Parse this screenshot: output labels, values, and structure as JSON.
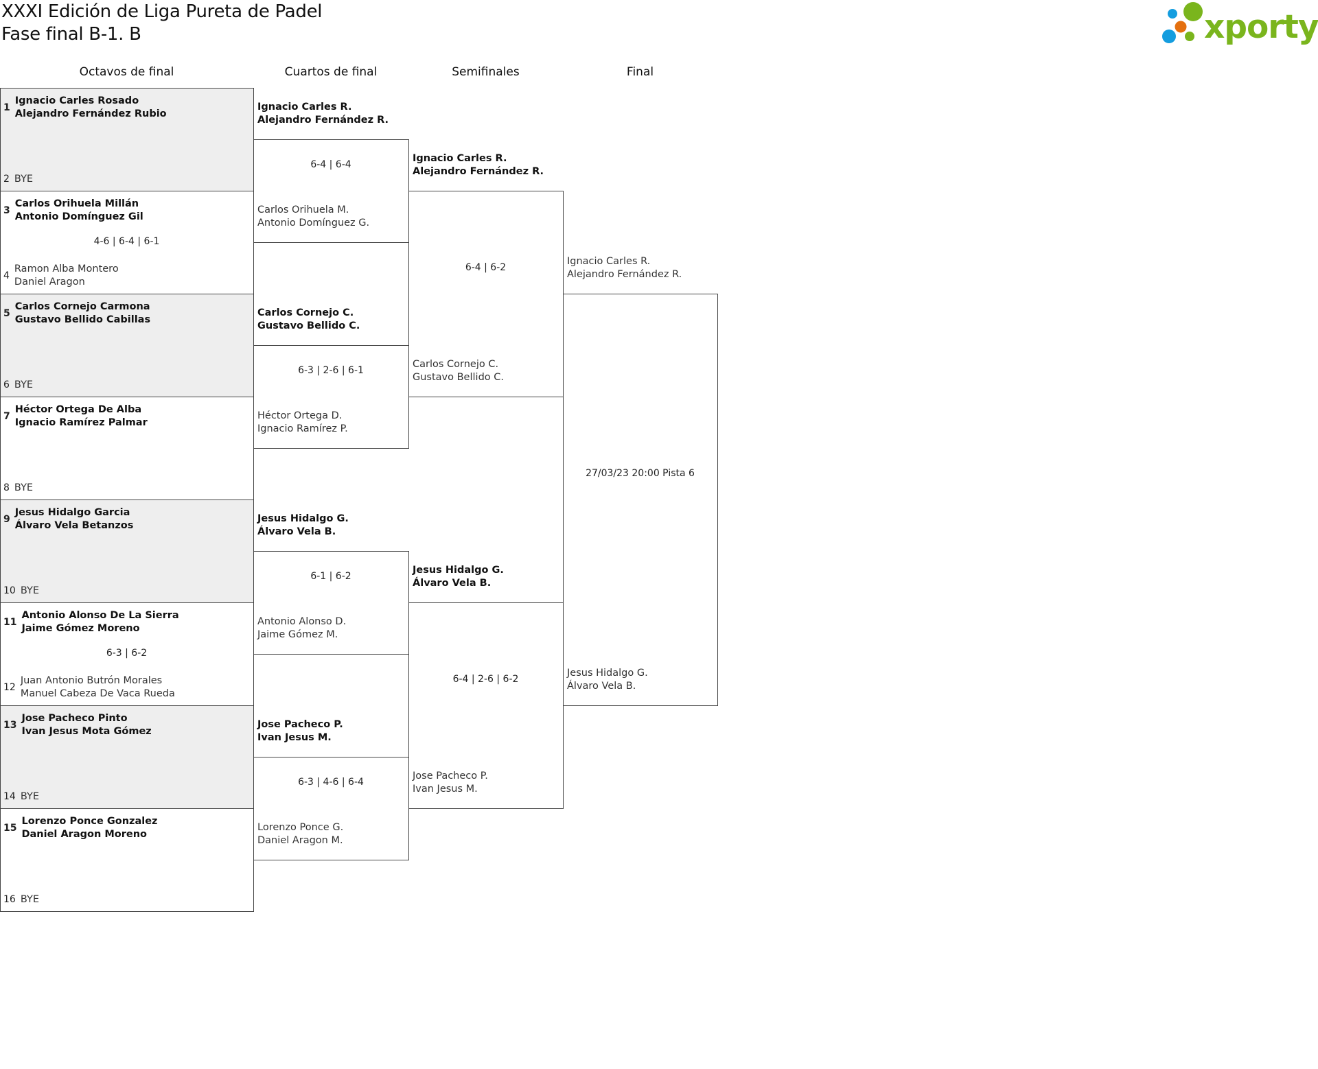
{
  "header": {
    "title": "XXXI Edición de Liga Pureta de Padel",
    "subtitle": "Fase final B-1. B"
  },
  "logo": {
    "text": "xporty",
    "colors": {
      "green": "#7ab51d",
      "blue": "#149ddf",
      "orange": "#e4700f"
    }
  },
  "rounds": [
    "Octavos de final",
    "Cuartos de final",
    "Semifinales",
    "Final"
  ],
  "colors": {
    "border": "#444444",
    "shaded_row": "#eeeeee"
  },
  "round_of_16": [
    {
      "seed_top": "1",
      "top": [
        "Ignacio Carles Rosado",
        "Alejandro Fernández Rubio"
      ],
      "seed_bottom": "2",
      "bottom": [
        "BYE"
      ],
      "score": "",
      "winner": "top"
    },
    {
      "seed_top": "3",
      "top": [
        "Carlos Orihuela Millán",
        "Antonio Domínguez Gil"
      ],
      "seed_bottom": "4",
      "bottom": [
        "Ramon Alba Montero",
        "Daniel Aragon"
      ],
      "score": "4-6 | 6-4 | 6-1",
      "winner": "top"
    },
    {
      "seed_top": "5",
      "top": [
        "Carlos Cornejo Carmona",
        "Gustavo Bellido Cabillas"
      ],
      "seed_bottom": "6",
      "bottom": [
        "BYE"
      ],
      "score": "",
      "winner": "top"
    },
    {
      "seed_top": "7",
      "top": [
        "Héctor Ortega De Alba",
        "Ignacio Ramírez Palmar"
      ],
      "seed_bottom": "8",
      "bottom": [
        "BYE"
      ],
      "score": "",
      "winner": "top"
    },
    {
      "seed_top": "9",
      "top": [
        "Jesus Hidalgo Garcia",
        "Álvaro Vela Betanzos"
      ],
      "seed_bottom": "10",
      "bottom": [
        "BYE"
      ],
      "score": "",
      "winner": "top"
    },
    {
      "seed_top": "11",
      "top": [
        "Antonio Alonso De La Sierra",
        "Jaime Gómez Moreno"
      ],
      "seed_bottom": "12",
      "bottom": [
        "Juan Antonio Butrón Morales",
        "Manuel Cabeza De Vaca Rueda"
      ],
      "score": "6-3 | 6-2",
      "winner": "top"
    },
    {
      "seed_top": "13",
      "top": [
        "Jose Pacheco Pinto",
        "Ivan Jesus Mota Gómez"
      ],
      "seed_bottom": "14",
      "bottom": [
        "BYE"
      ],
      "score": "",
      "winner": "top"
    },
    {
      "seed_top": "15",
      "top": [
        "Lorenzo Ponce Gonzalez",
        "Daniel Aragon Moreno"
      ],
      "seed_bottom": "16",
      "bottom": [
        "BYE"
      ],
      "score": "",
      "winner": "top"
    }
  ],
  "quarterfinals": [
    {
      "top": [
        "Ignacio Carles R.",
        "Alejandro Fernández R."
      ],
      "bottom": [
        "Carlos Orihuela M.",
        "Antonio Domínguez G."
      ],
      "score": "6-4 | 6-4",
      "winner": "top"
    },
    {
      "top": [
        "Carlos Cornejo C.",
        "Gustavo Bellido C."
      ],
      "bottom": [
        "Héctor Ortega D.",
        "Ignacio Ramírez P."
      ],
      "score": "6-3 | 2-6 | 6-1",
      "winner": "top"
    },
    {
      "top": [
        "Jesus Hidalgo G.",
        "Álvaro Vela B."
      ],
      "bottom": [
        "Antonio Alonso D.",
        "Jaime Gómez M."
      ],
      "score": "6-1 | 6-2",
      "winner": "top"
    },
    {
      "top": [
        "Jose Pacheco P.",
        "Ivan Jesus M."
      ],
      "bottom": [
        "Lorenzo Ponce G.",
        "Daniel Aragon M."
      ],
      "score": "6-3 | 4-6 | 6-4",
      "winner": "top"
    }
  ],
  "semifinals": [
    {
      "top": [
        "Ignacio Carles R.",
        "Alejandro Fernández R."
      ],
      "bottom": [
        "Carlos Cornejo C.",
        "Gustavo Bellido C."
      ],
      "score": "6-4 | 6-2",
      "winner": "top"
    },
    {
      "top": [
        "Jesus Hidalgo G.",
        "Álvaro Vela B."
      ],
      "bottom": [
        "Jose Pacheco P.",
        "Ivan Jesus M."
      ],
      "score": "6-4 | 2-6 | 6-2",
      "winner": "top"
    }
  ],
  "final": [
    {
      "top": [
        "Ignacio Carles R.",
        "Alejandro Fernández R."
      ],
      "bottom": [
        "Jesus Hidalgo G.",
        "Álvaro Vela B."
      ],
      "score": "27/03/23 20:00 Pista 6",
      "winner": ""
    }
  ]
}
